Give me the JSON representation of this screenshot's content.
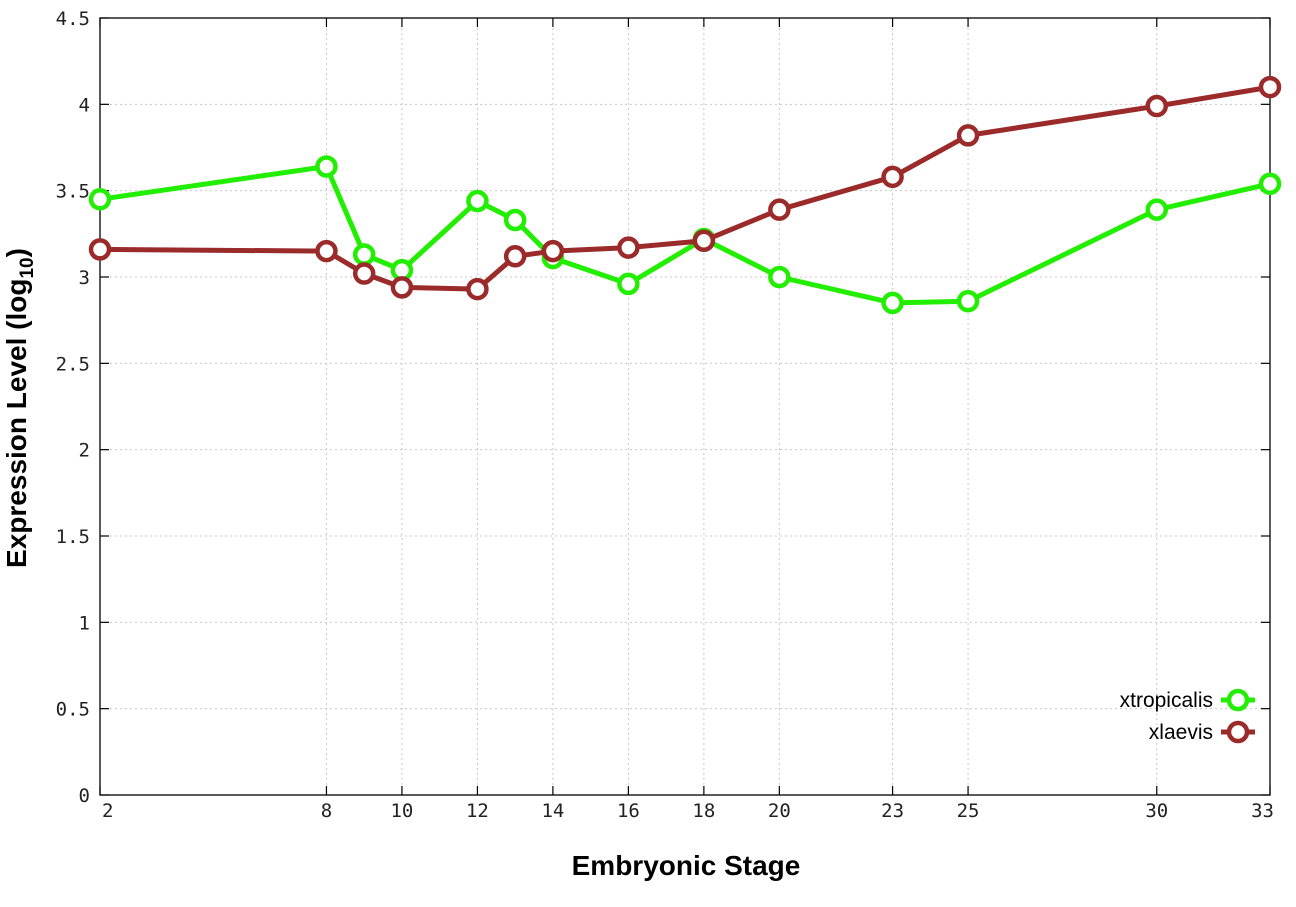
{
  "chart_data": {
    "type": "line",
    "xlabel": "Embryonic Stage",
    "ylabel": "Expression Level",
    "ylabel_sub": "10",
    "ylabel_prefix": "log",
    "x": [
      2,
      8,
      9,
      10,
      12,
      13,
      14,
      16,
      18,
      20,
      23,
      25,
      30,
      33
    ],
    "x_tick_labels": [
      "2",
      "8",
      "10",
      "12",
      "14",
      "16",
      "18",
      "20",
      "23",
      "25",
      "30",
      "33"
    ],
    "x_ticks": [
      2,
      8,
      10,
      12,
      14,
      16,
      18,
      20,
      23,
      25,
      30,
      33
    ],
    "xlim": [
      2,
      33
    ],
    "y_ticks": [
      0,
      0.5,
      1,
      1.5,
      2,
      2.5,
      3,
      3.5,
      4,
      4.5
    ],
    "y_tick_labels": [
      "0",
      "0.5",
      "1",
      "1.5",
      "2",
      "2.5",
      "3",
      "3.5",
      "4",
      "4.5"
    ],
    "ylim": [
      0,
      4.5
    ],
    "grid": true,
    "legend_position": "bottom-right",
    "series": [
      {
        "name": "xtropicalis",
        "color": "#22ee00",
        "values": [
          3.45,
          3.64,
          3.13,
          3.04,
          3.44,
          3.33,
          3.11,
          2.96,
          3.22,
          3.0,
          2.85,
          2.86,
          3.39,
          3.54
        ]
      },
      {
        "name": "xlaevis",
        "color": "#9b2a2a",
        "values": [
          3.16,
          3.15,
          3.02,
          2.94,
          2.93,
          3.12,
          3.15,
          3.17,
          3.21,
          3.39,
          3.58,
          3.82,
          3.99,
          4.1
        ]
      }
    ]
  }
}
